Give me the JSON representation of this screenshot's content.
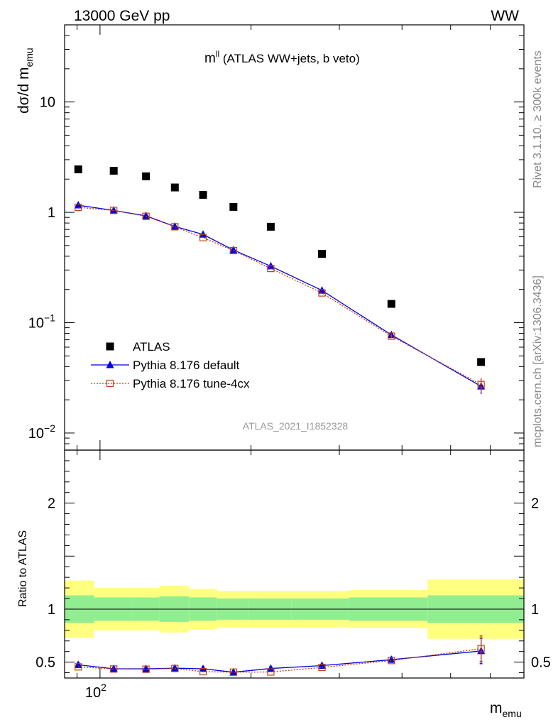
{
  "header": {
    "left": "13000 GeV pp",
    "right": "WW"
  },
  "side_labels": {
    "rivet": "Rivet 3.1.10, ≥ 300k events",
    "mcplots": "mcplots.cern.ch [arXiv:1306.3436]"
  },
  "chart_data": {
    "type": "scatter",
    "title": "m",
    "title_superscript": "ll",
    "subtitle": " (ATLAS WW+jets, b veto)",
    "analysis_id": "ATLAS_2021_I1852328",
    "xlabel": "m",
    "xlabel_sub": "emu",
    "ylabel_main": "dσ/d m",
    "ylabel_main_sub": "emu",
    "ylabel_ratio": "Ratio to ATLAS",
    "x_scale": "log",
    "y_scale": "log",
    "xlim": [
      85,
      700
    ],
    "ylim": [
      0.007,
      50
    ],
    "ratio_ylim": [
      0.35,
      2.5
    ],
    "x_ticks": [
      {
        "value": 100,
        "label": "10",
        "sup": "2"
      }
    ],
    "y_ticks": [
      {
        "value": 10,
        "label": "10",
        "sup": ""
      },
      {
        "value": 1,
        "label": "1",
        "sup": ""
      },
      {
        "value": 0.1,
        "label": "10",
        "sup": "−1"
      },
      {
        "value": 0.01,
        "label": "10",
        "sup": "−2"
      }
    ],
    "ratio_ticks": [
      {
        "value": 2,
        "label": "2"
      },
      {
        "value": 1,
        "label": "1"
      },
      {
        "value": 0.5,
        "label": "0.5"
      }
    ],
    "legend": {
      "placement": "lower-left"
    },
    "bins": [
      [
        85,
        97.3
      ],
      [
        97.3,
        116
      ],
      [
        116,
        131.3
      ],
      [
        131.3,
        150.5
      ],
      [
        150.5,
        171.1
      ],
      [
        171.1,
        197.5
      ],
      [
        197.5,
        240.9
      ],
      [
        240.9,
        313.6
      ],
      [
        313.6,
        449.8
      ],
      [
        449.8,
        700
      ]
    ],
    "data_band": {
      "green": [
        0.13,
        0.11,
        0.11,
        0.12,
        0.11,
        0.1,
        0.1,
        0.1,
        0.11,
        0.13
      ],
      "yellow": [
        0.27,
        0.2,
        0.2,
        0.22,
        0.19,
        0.17,
        0.17,
        0.17,
        0.18,
        0.28
      ]
    },
    "series": [
      {
        "name": "ATLAS",
        "marker": "filled-square",
        "color": "#000000",
        "x": [
          90.5,
          106.5,
          123.5,
          141,
          160.5,
          184.5,
          219,
          277,
          381,
          575
        ],
        "y": [
          2.45,
          2.38,
          2.12,
          1.68,
          1.44,
          1.12,
          0.74,
          0.42,
          0.148,
          0.044
        ]
      },
      {
        "name": "Pythia 8.176 default",
        "marker": "filled-triangle",
        "color": "#0000dd",
        "x": [
          90.5,
          106.5,
          123.5,
          141,
          160.5,
          184.5,
          219,
          277,
          381,
          575
        ],
        "y": [
          1.16,
          1.04,
          0.93,
          0.745,
          0.63,
          0.455,
          0.325,
          0.196,
          0.0775,
          0.0265
        ],
        "yerr": [
          0,
          0,
          0,
          0,
          0,
          0,
          0,
          0,
          0.003,
          0.004
        ],
        "ratio": [
          0.475,
          0.437,
          0.437,
          0.443,
          0.437,
          0.405,
          0.44,
          0.467,
          0.523,
          0.605
        ],
        "ratio_err": [
          0.02,
          0.012,
          0.018,
          0.018,
          0.02,
          0.012,
          0.02,
          0.015,
          0.025,
          0.12
        ]
      },
      {
        "name": "Pythia 8.176 tune-4cx",
        "marker": "open-square",
        "color": "#c04010",
        "x": [
          90.5,
          106.5,
          123.5,
          141,
          160.5,
          184.5,
          219,
          277,
          381,
          575
        ],
        "y": [
          1.11,
          1.04,
          0.92,
          0.74,
          0.59,
          0.45,
          0.31,
          0.186,
          0.0755,
          0.0275
        ],
        "yerr": [
          0,
          0,
          0,
          0,
          0,
          0,
          0,
          0,
          0.003,
          0.004
        ],
        "ratio": [
          0.455,
          0.435,
          0.433,
          0.44,
          0.41,
          0.405,
          0.407,
          0.45,
          0.515,
          0.627
        ],
        "ratio_err": [
          0,
          0,
          0,
          0,
          0,
          0,
          0,
          0,
          0,
          0.12
        ]
      }
    ]
  }
}
